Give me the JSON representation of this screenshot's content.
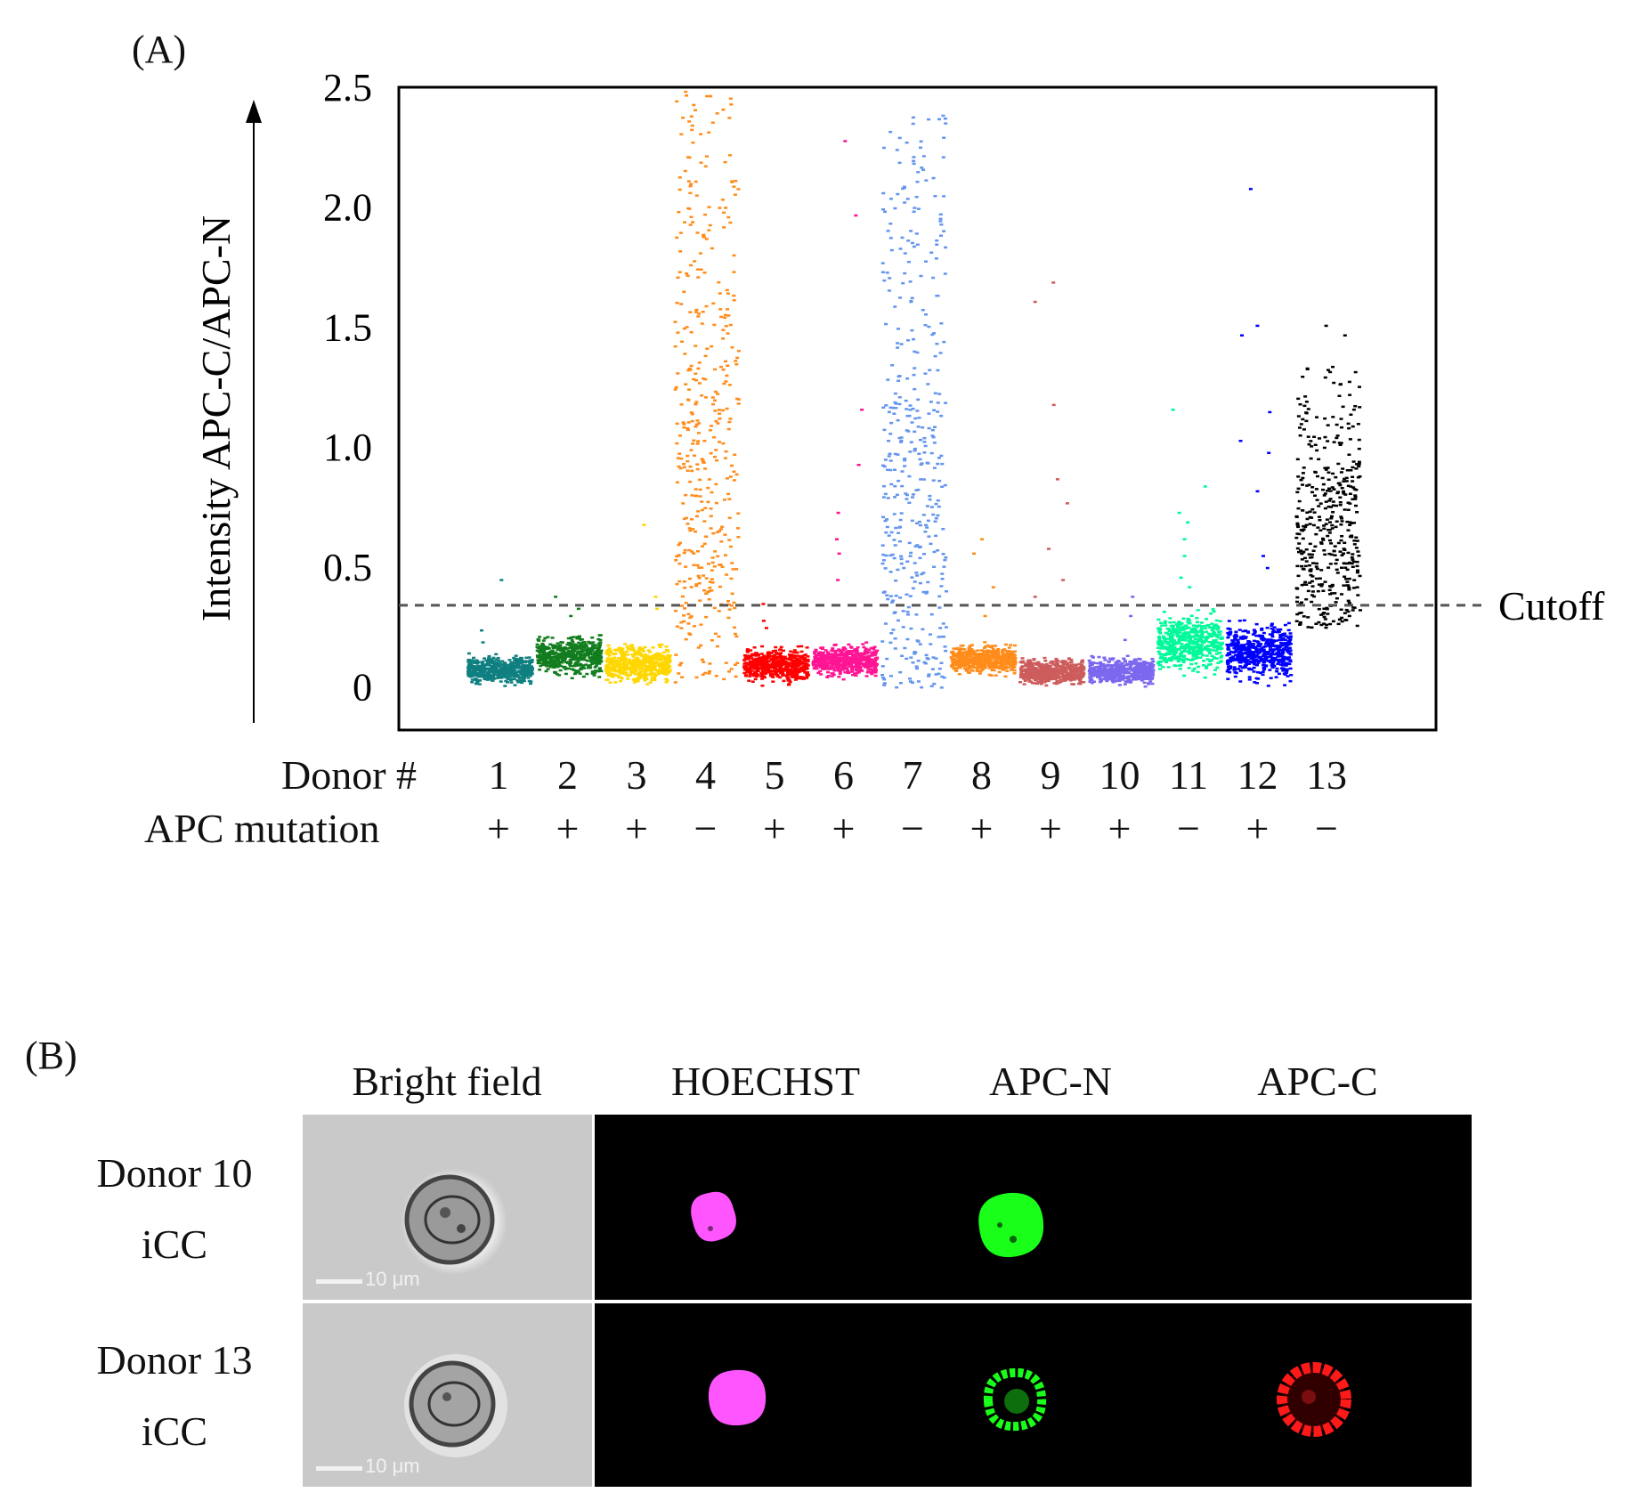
{
  "panel_a_label": "(A)",
  "panel_b_label": "(B)",
  "chart_data": {
    "type": "scatter",
    "ylabel": "Intensity APC-C/APC-N",
    "ylim": [
      -0.18,
      2.5
    ],
    "yticks": [
      "0",
      "0.5",
      "1.0",
      "1.5",
      "2.0",
      "2.5"
    ],
    "ytick_values": [
      0,
      0.5,
      1.0,
      1.5,
      2.0,
      2.5
    ],
    "cutoff": {
      "value": 0.34,
      "label": "Cutoff"
    },
    "x_row_label": "Donor #",
    "mutation_row_label": "APC mutation",
    "donors": [
      {
        "id": "1",
        "mutation": "+",
        "color": "#0f7f80",
        "y_min": 0.0,
        "y_max": 0.15,
        "median": 0.05,
        "outliers": [
          0.45,
          0.24,
          0.19
        ]
      },
      {
        "id": "2",
        "mutation": "+",
        "color": "#127d1e",
        "y_min": 0.03,
        "y_max": 0.24,
        "median": 0.15,
        "outliers": [
          0.38,
          0.33,
          0.3
        ]
      },
      {
        "id": "3",
        "mutation": "+",
        "color": "#ffd700",
        "y_min": 0.0,
        "y_max": 0.2,
        "median": 0.06,
        "outliers": [
          0.68,
          0.38,
          0.33
        ]
      },
      {
        "id": "4",
        "mutation": "−",
        "color": "#ff8c1a",
        "y_min": 0.02,
        "y_max": 2.5,
        "median": 0.8,
        "outliers": []
      },
      {
        "id": "5",
        "mutation": "+",
        "color": "#ff0000",
        "y_min": 0.0,
        "y_max": 0.19,
        "median": 0.06,
        "outliers": [
          0.35,
          0.28,
          0.25
        ]
      },
      {
        "id": "6",
        "mutation": "+",
        "color": "#ff1493",
        "y_min": 0.03,
        "y_max": 0.2,
        "median": 0.08,
        "outliers": [
          2.28,
          1.97,
          1.16,
          0.93,
          0.73,
          0.62,
          0.56,
          0.45
        ]
      },
      {
        "id": "7",
        "mutation": "−",
        "color": "#6495ed",
        "y_min": 0.0,
        "y_max": 2.4,
        "median": 0.6,
        "outliers": []
      },
      {
        "id": "8",
        "mutation": "+",
        "color": "#ff8c1a",
        "y_min": 0.04,
        "y_max": 0.2,
        "median": 0.12,
        "outliers": [
          0.62,
          0.56,
          0.42,
          0.3
        ]
      },
      {
        "id": "9",
        "mutation": "+",
        "color": "#cd5c5c",
        "y_min": 0.0,
        "y_max": 0.14,
        "median": 0.04,
        "outliers": [
          1.69,
          1.61,
          1.18,
          0.87,
          0.77,
          0.58,
          0.45,
          0.38
        ]
      },
      {
        "id": "10",
        "mutation": "+",
        "color": "#7b68ee",
        "y_min": 0.0,
        "y_max": 0.14,
        "median": 0.05,
        "outliers": [
          0.38,
          0.3,
          0.2
        ]
      },
      {
        "id": "11",
        "mutation": "−",
        "color": "#00fa9a",
        "y_min": 0.02,
        "y_max": 0.35,
        "median": 0.15,
        "outliers": [
          1.16,
          0.84,
          0.73,
          0.69,
          0.62,
          0.55,
          0.46,
          0.42
        ]
      },
      {
        "id": "12",
        "mutation": "+",
        "color": "#0000ff",
        "y_min": 0.0,
        "y_max": 0.3,
        "median": 0.1,
        "outliers": [
          2.08,
          1.51,
          1.47,
          1.15,
          1.03,
          0.98,
          0.82,
          0.55,
          0.5
        ]
      },
      {
        "id": "13",
        "mutation": "−",
        "color": "#000000",
        "y_min": 0.25,
        "y_max": 1.35,
        "median": 0.66,
        "outliers": [
          1.51,
          1.47
        ]
      }
    ]
  },
  "panel_b": {
    "columns": [
      "Bright field",
      "HOECHST",
      "APC-N",
      "APC-C"
    ],
    "rows": [
      {
        "line1": "Donor 10",
        "line2": "iCC",
        "scale_label": "10 μm",
        "apc_c_visible": false
      },
      {
        "line1": "Donor 13",
        "line2": "iCC",
        "scale_label": "10 μm",
        "apc_c_visible": true
      }
    ],
    "colors": {
      "hoechst": "#ff55ff",
      "apc_n": "#19ff19",
      "apc_c": "#ff1a1a"
    }
  }
}
